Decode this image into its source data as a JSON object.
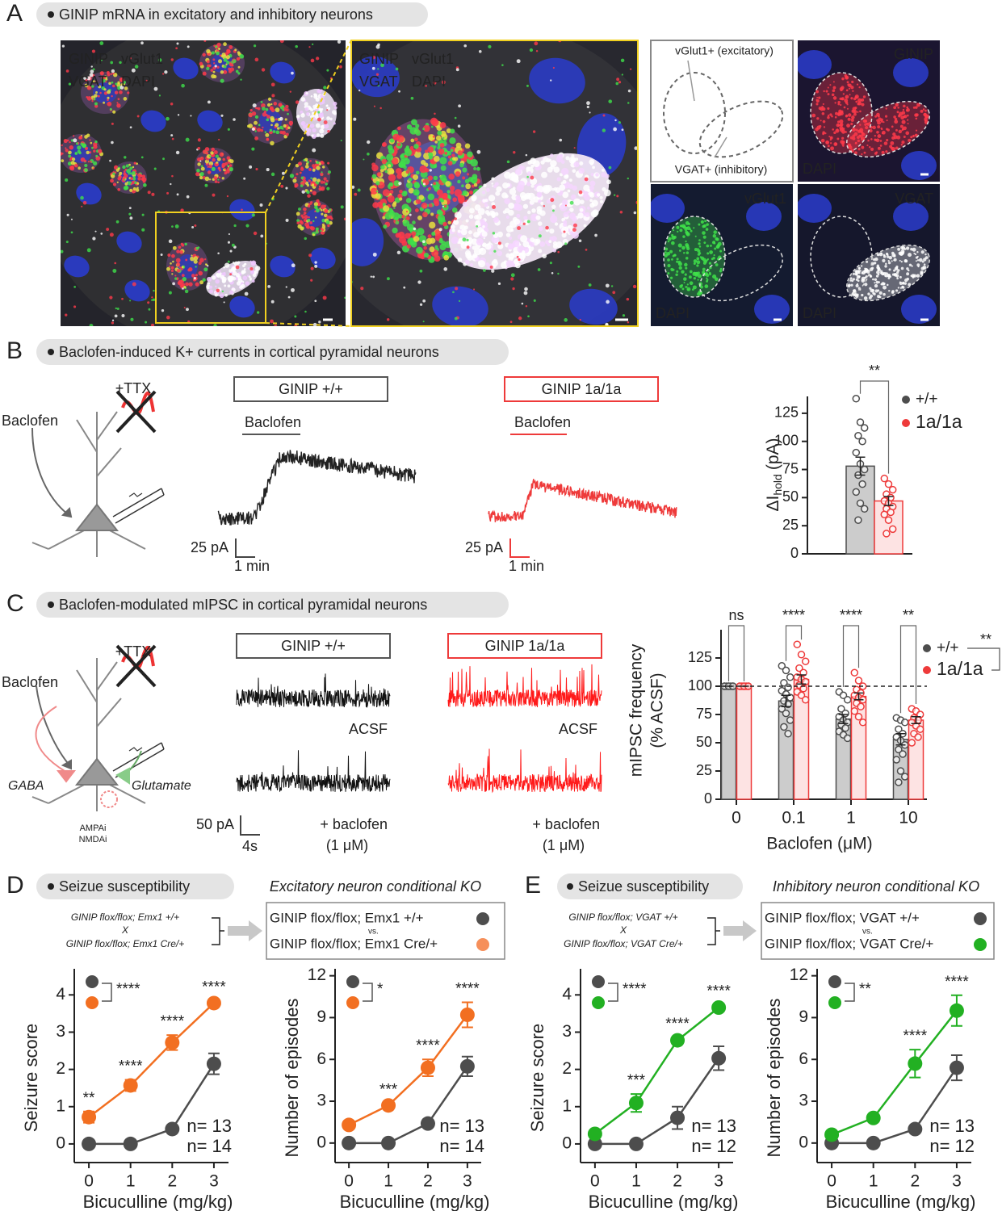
{
  "panels": {
    "a": {
      "label": "A",
      "title": "GINIP mRNA in excitatory and inhibitory neurons",
      "overview": {
        "labels": [
          "GINIP",
          "vGlut1",
          "VGAT",
          "DAPI"
        ]
      },
      "zoom": {
        "labels": [
          "GINIP",
          "vGlut1",
          "VGAT",
          "DAPI"
        ]
      },
      "outline": {
        "upper": "vGlut1+ (excitatory)",
        "lower": "VGAT+ (inhibitory)"
      },
      "channels": [
        {
          "labels": [
            "GINIP",
            "DAPI"
          ]
        },
        {
          "labels": [
            "vGlut1",
            "DAPI"
          ]
        },
        {
          "labels": [
            "VGAT",
            "DAPI"
          ]
        }
      ]
    },
    "b": {
      "label": "B",
      "title": "Baclofen-induced K+ currents in cortical pyramidal neurons",
      "drug": "Baclofen",
      "blocker": "+TTX",
      "traces": [
        {
          "genotype": "GINIP +/+",
          "drug": "Baclofen",
          "scale_y": "25 pA",
          "scale_x": "1 min"
        },
        {
          "genotype": "GINIP 1a/1a",
          "drug": "Baclofen",
          "scale_y": "25 pA",
          "scale_x": "1 min"
        }
      ]
    },
    "c": {
      "label": "C",
      "title": "Baclofen-modulated mIPSC in cortical pyramidal neurons",
      "drug": "Baclofen",
      "blocker": "+TTX",
      "inhibitory": "GABA",
      "excitatory": "Glutamate",
      "antagonists": [
        "AMPAi",
        "NMDAi"
      ],
      "traces": [
        {
          "genotype": "GINIP +/+",
          "control": "ACSF",
          "treatment": "+ baclofen",
          "dose": "(1 μM)",
          "scale_y": "50 pA",
          "scale_x": "4s"
        },
        {
          "genotype": "GINIP 1a/1a",
          "control": "ACSF",
          "treatment": "+ baclofen",
          "dose": "(1 μM)"
        }
      ]
    },
    "d": {
      "label": "D",
      "title": "Seizue susceptibility",
      "subtitle": "Excitatory neuron conditional KO",
      "cross": [
        "GINIP flox/flox; Emx1 +/+",
        "X",
        "GINIP flox/flox; Emx1 Cre/+"
      ],
      "groups": [
        "GINIP flox/flox; Emx1 +/+",
        "vs.",
        "GINIP flox/flox; Emx1 Cre/+"
      ]
    },
    "e": {
      "label": "E",
      "title": "Seizue susceptibility",
      "subtitle": "Inhibitory neuron conditional KO",
      "cross": [
        "GINIP flox/flox; VGAT +/+",
        "X",
        "GINIP flox/flox; VGAT Cre/+"
      ],
      "groups": [
        "GINIP flox/flox; VGAT +/+",
        "vs.",
        "GINIP flox/flox; VGAT Cre/+"
      ]
    }
  },
  "chart_data": [
    {
      "type": "bar",
      "ylabel": {
        "main": "ΔI",
        "sub": "hold",
        "unit": "(pA)"
      },
      "categories": [
        null
      ],
      "series": [
        {
          "name": "+/+",
          "color": "#4d4d4d",
          "fill": "#cccccc",
          "values": [
            78
          ],
          "errors": [
            8
          ],
          "points": [
            [
              138,
              117,
              112,
              105,
              100,
              90,
              80,
              75,
              70,
              62,
              55,
              45,
              40,
              30
            ]
          ]
        },
        {
          "name": "1a/1a",
          "color": "#ee3a3a",
          "fill": "#fde3e3",
          "values": [
            47
          ],
          "errors": [
            4
          ],
          "points": [
            [
              67,
              62,
              57,
              53,
              50,
              47,
              45,
              42,
              40,
              37,
              35,
              30,
              22,
              18
            ]
          ]
        }
      ],
      "significance": "**",
      "ylim": [
        0,
        140
      ],
      "yticks": [
        0,
        25,
        50,
        75,
        100,
        125
      ]
    },
    {
      "type": "bar",
      "ylabel": [
        "mIPSC frequency",
        "(% ACSF)"
      ],
      "xlabel": "Baclofen (μM)",
      "categories": [
        "0",
        "0.1",
        "1",
        "10"
      ],
      "series": [
        {
          "name": "+/+",
          "color": "#4d4d4d",
          "fill": "#cccccc",
          "values": [
            100,
            87,
            71,
            53
          ],
          "errors": [
            0,
            5,
            4,
            5
          ],
          "points": [
            [
              100,
              100,
              100,
              100,
              100,
              100,
              100,
              100
            ],
            [
              118,
              114,
              108,
              103,
              99,
              96,
              93,
              90,
              87,
              84,
              80,
              76,
              70,
              64,
              58
            ],
            [
              95,
              92,
              88,
              80,
              76,
              73,
              70,
              68,
              66,
              63,
              60,
              57,
              54
            ],
            [
              72,
              70,
              68,
              62,
              58,
              55,
              52,
              48,
              44,
              40,
              35,
              25,
              20,
              15
            ]
          ]
        },
        {
          "name": "1a/1a",
          "color": "#ee3a3a",
          "fill": "#fde3e3",
          "values": [
            100,
            106,
            91,
            70
          ],
          "errors": [
            0,
            4,
            3,
            3
          ],
          "points": [
            [
              100,
              100,
              100,
              100,
              100,
              100,
              100,
              100
            ],
            [
              137,
              128,
              122,
              116,
              112,
              108,
              106,
              104,
              101,
              98,
              95,
              92,
              88
            ],
            [
              112,
              105,
              100,
              97,
              94,
              92,
              90,
              88,
              85,
              82,
              78,
              73,
              68
            ],
            [
              80,
              78,
              75,
              72,
              70,
              68,
              65,
              62,
              58,
              55,
              50
            ]
          ]
        }
      ],
      "significance": [
        "ns",
        "****",
        "****",
        "**"
      ],
      "overall_significance": "**",
      "reference": 100,
      "ylim": [
        0,
        150
      ],
      "yticks": [
        0,
        25,
        50,
        75,
        100,
        125
      ]
    },
    {
      "type": "line",
      "xlabel": "Bicuculline (mg/kg)",
      "ylabel": "Seizure score",
      "x": [
        0,
        1,
        2,
        3
      ],
      "series": [
        {
          "color": "#4d4d4d",
          "values": [
            0,
            0,
            0.4,
            2.15
          ],
          "errors": [
            0,
            0,
            0.05,
            0.28
          ],
          "label": "n= 13"
        },
        {
          "color": "#f26f21",
          "values": [
            0.72,
            1.57,
            2.72,
            3.78
          ],
          "errors": [
            0.15,
            0.15,
            0.2,
            0.06
          ],
          "label": "n= 14"
        }
      ],
      "significance": [
        "**",
        "****",
        "****",
        "****"
      ],
      "overall_significance": "****",
      "xlim": [
        -0.35,
        3.35
      ],
      "ylim": [
        -0.5,
        4.7
      ],
      "xticks": [
        0,
        1,
        2,
        3
      ],
      "yticks": [
        0,
        1,
        2,
        3,
        4
      ]
    },
    {
      "type": "line",
      "xlabel": "Bicuculline (mg/kg)",
      "ylabel": "Number of episodes",
      "x": [
        0,
        1,
        2,
        3
      ],
      "series": [
        {
          "color": "#4d4d4d",
          "values": [
            0,
            0,
            1.4,
            5.5
          ],
          "errors": [
            0,
            0,
            0.15,
            0.7
          ],
          "label": "n= 13"
        },
        {
          "color": "#f26f21",
          "values": [
            1.3,
            2.7,
            5.4,
            9.2
          ],
          "errors": [
            0.1,
            0.15,
            0.6,
            0.9
          ],
          "label": "n= 14"
        }
      ],
      "significance": [
        null,
        "***",
        "****",
        "****"
      ],
      "overall_significance": "*",
      "xlim": [
        -0.35,
        3.35
      ],
      "ylim": [
        -1.4,
        12.5
      ],
      "xticks": [
        0,
        1,
        2,
        3
      ],
      "yticks": [
        0,
        3,
        6,
        9,
        12
      ]
    },
    {
      "type": "line",
      "xlabel": "Bicuculline (mg/kg)",
      "ylabel": "Seizure score",
      "x": [
        0,
        1,
        2,
        3
      ],
      "series": [
        {
          "color": "#4d4d4d",
          "values": [
            0,
            0,
            0.7,
            2.3
          ],
          "errors": [
            0,
            0,
            0.3,
            0.32
          ],
          "label": "n= 13"
        },
        {
          "color": "#22b022",
          "values": [
            0.27,
            1.1,
            2.78,
            3.66
          ],
          "errors": [
            0.04,
            0.24,
            0.08,
            0.08
          ],
          "label": "n= 12"
        }
      ],
      "significance": [
        null,
        "***",
        "****",
        "****"
      ],
      "overall_significance": "****",
      "xlim": [
        -0.35,
        3.35
      ],
      "ylim": [
        -0.5,
        4.7
      ],
      "xticks": [
        0,
        1,
        2,
        3
      ],
      "yticks": [
        0,
        1,
        2,
        3,
        4
      ]
    },
    {
      "type": "line",
      "xlabel": "Bicuculline (mg/kg)",
      "ylabel": "Number of episodes",
      "x": [
        0,
        1,
        2,
        3
      ],
      "series": [
        {
          "color": "#4d4d4d",
          "values": [
            0,
            0,
            1,
            5.4
          ],
          "errors": [
            0,
            0,
            0.12,
            0.9
          ],
          "label": "n= 13"
        },
        {
          "color": "#22b022",
          "values": [
            0.6,
            1.8,
            5.7,
            9.5
          ],
          "errors": [
            0.1,
            0.1,
            1,
            1.1
          ],
          "label": "n= 12"
        }
      ],
      "significance": [
        null,
        null,
        "****",
        "****"
      ],
      "overall_significance": "**",
      "xlim": [
        -0.35,
        3.35
      ],
      "ylim": [
        -1.4,
        12.5
      ],
      "xticks": [
        0,
        1,
        2,
        3
      ],
      "yticks": [
        0,
        3,
        6,
        9,
        12
      ]
    }
  ]
}
